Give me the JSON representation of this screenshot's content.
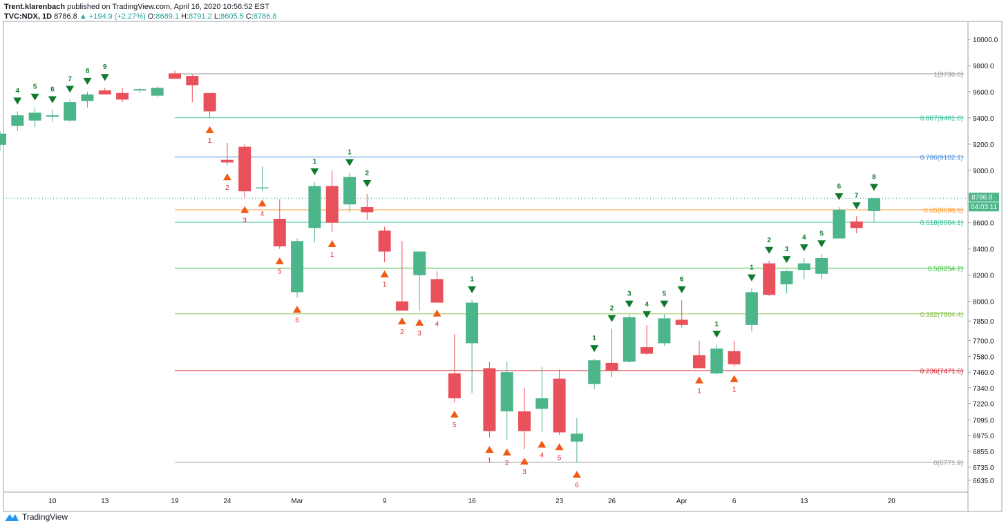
{
  "header": {
    "publisher": "Trent.klarenbach",
    "published_text": "published on TradingView.com, April 16, 2020 10:56:52 EST"
  },
  "ohlc": {
    "symbol": "TVC:NDX, 1D",
    "last": "8786.8",
    "change": "▲ +194.9 (+2.27%)",
    "o_label": "O:",
    "o": "8689.1",
    "h_label": "H:",
    "h": "8791.2",
    "l_label": "L:",
    "l": "8605.5",
    "c_label": "C:",
    "c": "8786.8"
  },
  "footer": {
    "brand": "TradingView"
  },
  "colors": {
    "up": "#4cb58a",
    "down": "#e8505b",
    "buy_marker": "#0f7a2e",
    "sell_marker": "#f05a14",
    "sell_label": "#d42b2b"
  },
  "chart_data": {
    "type": "candlestick",
    "y_axis": {
      "range": [
        6560,
        10100
      ],
      "tick_labels": [
        "10000.0",
        "9800.0",
        "9600.0",
        "9400.0",
        "9200.0",
        "9000.0",
        "8786.8",
        "8600.0",
        "8400.0",
        "8200.0",
        "8000.0",
        "7850.0",
        "7700.0",
        "7580.0",
        "7460.0",
        "7340.0",
        "7220.0",
        "7095.0",
        "6975.0",
        "6855.0",
        "6735.0",
        "6635.0"
      ],
      "ticks": [
        {
          "value": 10000,
          "label": "10000.0"
        },
        {
          "value": 9800,
          "label": "9800.0"
        },
        {
          "value": 9600,
          "label": "9600.0"
        },
        {
          "value": 9400,
          "label": "9400.0"
        },
        {
          "value": 9200,
          "label": "9200.0"
        },
        {
          "value": 9000,
          "label": "9000.0"
        },
        {
          "value": 8600,
          "label": "8600.0"
        },
        {
          "value": 8400,
          "label": "8400.0"
        },
        {
          "value": 8200,
          "label": "8200.0"
        },
        {
          "value": 8000,
          "label": "8000.0"
        },
        {
          "value": 7850,
          "label": "7850.0"
        },
        {
          "value": 7700,
          "label": "7700.0"
        },
        {
          "value": 7580,
          "label": "7580.0"
        },
        {
          "value": 7460,
          "label": "7460.0"
        },
        {
          "value": 7340,
          "label": "7340.0"
        },
        {
          "value": 7220,
          "label": "7220.0"
        },
        {
          "value": 7095,
          "label": "7095.0"
        },
        {
          "value": 6975,
          "label": "6975.0"
        },
        {
          "value": 6855,
          "label": "6855.0"
        },
        {
          "value": 6735,
          "label": "6735.0"
        },
        {
          "value": 6635,
          "label": "6635.0"
        }
      ],
      "last_price_label": "8786.8",
      "countdown_label": "04:03:11"
    },
    "x_axis": {
      "labels": [
        "10",
        "13",
        "19",
        "24",
        "Mar",
        "9",
        "16",
        "23",
        "26",
        "Apr",
        "6",
        "13",
        "20"
      ],
      "label_bar_index": [
        3,
        6,
        10,
        13,
        17,
        22,
        27,
        32,
        35,
        39,
        42,
        46,
        51
      ]
    },
    "candles": [
      {
        "o": 9195,
        "h": 9300,
        "l": 9150,
        "c": 9280
      },
      {
        "o": 9340,
        "h": 9450,
        "l": 9300,
        "c": 9420
      },
      {
        "o": 9380,
        "h": 9480,
        "l": 9330,
        "c": 9440
      },
      {
        "o": 9410,
        "h": 9460,
        "l": 9370,
        "c": 9420
      },
      {
        "o": 9380,
        "h": 9540,
        "l": 9370,
        "c": 9520
      },
      {
        "o": 9530,
        "h": 9600,
        "l": 9480,
        "c": 9580
      },
      {
        "o": 9610,
        "h": 9630,
        "l": 9580,
        "c": 9580
      },
      {
        "o": 9590,
        "h": 9630,
        "l": 9520,
        "c": 9540
      },
      {
        "o": 9610,
        "h": 9630,
        "l": 9590,
        "c": 9620
      },
      {
        "o": 9570,
        "h": 9640,
        "l": 9560,
        "c": 9630
      },
      {
        "o": 9740,
        "h": 9760,
        "l": 9700,
        "c": 9700
      },
      {
        "o": 9720,
        "h": 9730,
        "l": 9520,
        "c": 9650
      },
      {
        "o": 9590,
        "h": 9590,
        "l": 9400,
        "c": 9450
      },
      {
        "o": 9080,
        "h": 9210,
        "l": 9040,
        "c": 9060
      },
      {
        "o": 9180,
        "h": 9200,
        "l": 8790,
        "c": 8840
      },
      {
        "o": 8870,
        "h": 9030,
        "l": 8840,
        "c": 8870
      },
      {
        "o": 8630,
        "h": 8780,
        "l": 8400,
        "c": 8420
      },
      {
        "o": 8070,
        "h": 8480,
        "l": 8030,
        "c": 8460
      },
      {
        "o": 8560,
        "h": 8910,
        "l": 8450,
        "c": 8880
      },
      {
        "o": 8880,
        "h": 9000,
        "l": 8530,
        "c": 8600
      },
      {
        "o": 8740,
        "h": 8980,
        "l": 8680,
        "c": 8950
      },
      {
        "o": 8720,
        "h": 8820,
        "l": 8620,
        "c": 8680
      },
      {
        "o": 8540,
        "h": 8570,
        "l": 8300,
        "c": 8380
      },
      {
        "o": 8000,
        "h": 8460,
        "l": 7940,
        "c": 7930
      },
      {
        "o": 8200,
        "h": 8380,
        "l": 7930,
        "c": 8380
      },
      {
        "o": 8170,
        "h": 8230,
        "l": 8000,
        "c": 7990
      },
      {
        "o": 7450,
        "h": 7750,
        "l": 7230,
        "c": 7260
      },
      {
        "o": 7680,
        "h": 8010,
        "l": 7300,
        "c": 7990
      },
      {
        "o": 7490,
        "h": 7540,
        "l": 6960,
        "c": 7010
      },
      {
        "o": 7160,
        "h": 7540,
        "l": 6940,
        "c": 7460
      },
      {
        "o": 7160,
        "h": 7340,
        "l": 6870,
        "c": 7010
      },
      {
        "o": 7180,
        "h": 7500,
        "l": 7000,
        "c": 7260
      },
      {
        "o": 7410,
        "h": 7480,
        "l": 6980,
        "c": 7000
      },
      {
        "o": 6930,
        "h": 7110,
        "l": 6770,
        "c": 6990
      },
      {
        "o": 7370,
        "h": 7560,
        "l": 7330,
        "c": 7550
      },
      {
        "o": 7530,
        "h": 7790,
        "l": 7420,
        "c": 7470
      },
      {
        "o": 7540,
        "h": 7900,
        "l": 7530,
        "c": 7880
      },
      {
        "o": 7650,
        "h": 7820,
        "l": 7590,
        "c": 7600
      },
      {
        "o": 7680,
        "h": 7900,
        "l": 7660,
        "c": 7870
      },
      {
        "o": 7860,
        "h": 8010,
        "l": 7800,
        "c": 7820
      },
      {
        "o": 7590,
        "h": 7700,
        "l": 7490,
        "c": 7490
      },
      {
        "o": 7450,
        "h": 7670,
        "l": 7440,
        "c": 7640
      },
      {
        "o": 7620,
        "h": 7700,
        "l": 7500,
        "c": 7520
      },
      {
        "o": 7820,
        "h": 8100,
        "l": 7770,
        "c": 8070
      },
      {
        "o": 8290,
        "h": 8310,
        "l": 8040,
        "c": 8050
      },
      {
        "o": 8130,
        "h": 8240,
        "l": 8060,
        "c": 8230
      },
      {
        "o": 8240,
        "h": 8330,
        "l": 8170,
        "c": 8290
      },
      {
        "o": 8210,
        "h": 8360,
        "l": 8170,
        "c": 8330
      },
      {
        "o": 8480,
        "h": 8720,
        "l": 8480,
        "c": 8700
      },
      {
        "o": 8610,
        "h": 8650,
        "l": 8520,
        "c": 8560
      },
      {
        "o": 8689,
        "h": 8791,
        "l": 8605,
        "c": 8787
      }
    ],
    "fib_levels": [
      {
        "label": "1(9736.6)",
        "value": 9736.6,
        "color": "#999999"
      },
      {
        "label": "0.887(9401.6)",
        "value": 9401.6,
        "color": "#35c29c"
      },
      {
        "label": "0.786(9102.1)",
        "value": 9102.1,
        "color": "#4a90d9"
      },
      {
        "label": "0.65(8698.9)",
        "value": 8698.9,
        "color": "#ff9933"
      },
      {
        "label": "0.618(8604.1)",
        "value": 8604.1,
        "color": "#35c29c"
      },
      {
        "label": "0.5(8254.2)",
        "value": 8254.2,
        "color": "#3cbf3c"
      },
      {
        "label": "0.382(7904.4)",
        "value": 7904.4,
        "color": "#8bc34a"
      },
      {
        "label": "0.236(7471.6)",
        "value": 7471.6,
        "color": "#d4202c"
      },
      {
        "label": "0(6771.9)",
        "value": 6771.9,
        "color": "#999999"
      }
    ],
    "buy_setup": [
      {
        "bar": 1,
        "label": "4"
      },
      {
        "bar": 2,
        "label": "5"
      },
      {
        "bar": 3,
        "label": "6"
      },
      {
        "bar": 4,
        "label": "7"
      },
      {
        "bar": 5,
        "label": "8"
      },
      {
        "bar": 6,
        "label": "9"
      },
      {
        "bar": 18,
        "label": "1"
      },
      {
        "bar": 20,
        "label": "1"
      },
      {
        "bar": 21,
        "label": "2"
      },
      {
        "bar": 27,
        "label": "1"
      },
      {
        "bar": 34,
        "label": "1"
      },
      {
        "bar": 35,
        "label": "2"
      },
      {
        "bar": 36,
        "label": "3"
      },
      {
        "bar": 37,
        "label": "4"
      },
      {
        "bar": 38,
        "label": "5"
      },
      {
        "bar": 39,
        "label": "6"
      },
      {
        "bar": 41,
        "label": "1"
      },
      {
        "bar": 43,
        "label": "1"
      },
      {
        "bar": 44,
        "label": "2"
      },
      {
        "bar": 45,
        "label": "3"
      },
      {
        "bar": 46,
        "label": "4"
      },
      {
        "bar": 47,
        "label": "5"
      },
      {
        "bar": 48,
        "label": "6"
      },
      {
        "bar": 49,
        "label": "7"
      },
      {
        "bar": 50,
        "label": "8"
      }
    ],
    "sell_setup": [
      {
        "bar": 12,
        "label": "1"
      },
      {
        "bar": 13,
        "label": "2"
      },
      {
        "bar": 14,
        "label": "3"
      },
      {
        "bar": 15,
        "label": "4"
      },
      {
        "bar": 16,
        "label": "5"
      },
      {
        "bar": 17,
        "label": "6"
      },
      {
        "bar": 19,
        "label": "1"
      },
      {
        "bar": 22,
        "label": "1"
      },
      {
        "bar": 23,
        "label": "2"
      },
      {
        "bar": 24,
        "label": "3"
      },
      {
        "bar": 25,
        "label": "4"
      },
      {
        "bar": 26,
        "label": "5"
      },
      {
        "bar": 28,
        "label": "1"
      },
      {
        "bar": 29,
        "label": "2"
      },
      {
        "bar": 30,
        "label": "3"
      },
      {
        "bar": 31,
        "label": "4"
      },
      {
        "bar": 32,
        "label": "5"
      },
      {
        "bar": 33,
        "label": "6"
      },
      {
        "bar": 40,
        "label": "1"
      },
      {
        "bar": 42,
        "label": "1"
      }
    ]
  }
}
